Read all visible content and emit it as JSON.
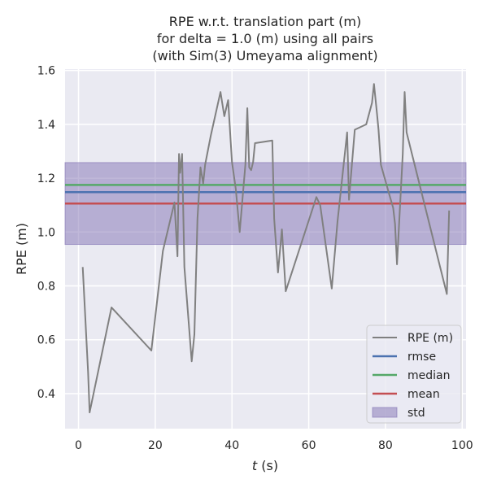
{
  "chart_data": {
    "type": "line",
    "title_lines": [
      "RPE w.r.t. translation part (m)",
      "for delta = 1.0 (m) using all pairs",
      "(with Sim(3) Umeyama alignment)"
    ],
    "xlabel_italic": "t",
    "xlabel_rest": " (s)",
    "ylabel": "RPE (m)",
    "xlim": [
      -3.5,
      101
    ],
    "ylim": [
      0.27,
      1.605
    ],
    "xticks": [
      0,
      20,
      40,
      60,
      80,
      100
    ],
    "xtick_labels": [
      "0",
      "20",
      "40",
      "60",
      "80",
      "100"
    ],
    "yticks": [
      0.4,
      0.6,
      0.8,
      1.0,
      1.2,
      1.4,
      1.6
    ],
    "ytick_labels": [
      "0.4",
      "0.6",
      "0.8",
      "1.0",
      "1.2",
      "1.4",
      "1.6"
    ],
    "grid": true,
    "legend_position": "lower-right",
    "series": [
      {
        "name": "RPE (m)",
        "color": "#808080",
        "x": [
          1.1,
          2.5,
          2.9,
          8.6,
          19.0,
          22.0,
          25.0,
          25.8,
          26.2,
          26.5,
          27.0,
          27.6,
          29.5,
          30.2,
          31.0,
          31.8,
          32.5,
          33.0,
          34.5,
          37.0,
          38.0,
          39.0,
          40.0,
          41.0,
          42.0,
          43.5,
          44.0,
          44.5,
          45.0,
          45.5,
          46.0,
          50.5,
          51.0,
          52.0,
          53.0,
          54.0,
          62.0,
          63.0,
          66.0,
          67.5,
          70.0,
          70.5,
          72.0,
          75.0,
          76.5,
          77.0,
          77.8,
          78.2,
          78.8,
          81.0,
          82.0,
          82.5,
          83.0,
          84.5,
          85.0,
          85.5,
          96.0,
          96.6
        ],
        "values": [
          0.87,
          0.48,
          0.33,
          0.72,
          0.56,
          0.93,
          1.11,
          0.91,
          1.29,
          1.22,
          1.29,
          0.87,
          0.52,
          0.62,
          1.05,
          1.24,
          1.18,
          1.25,
          1.36,
          1.52,
          1.43,
          1.49,
          1.26,
          1.16,
          1.0,
          1.25,
          1.46,
          1.24,
          1.23,
          1.26,
          1.33,
          1.34,
          1.05,
          0.85,
          1.01,
          0.78,
          1.13,
          1.1,
          0.79,
          1.04,
          1.37,
          1.12,
          1.38,
          1.4,
          1.48,
          1.55,
          1.44,
          1.38,
          1.25,
          1.14,
          1.09,
          1.03,
          0.88,
          1.29,
          1.52,
          1.37,
          0.77,
          1.08
        ]
      },
      {
        "name": "rmse",
        "color": "#4c72b0",
        "value": 1.148
      },
      {
        "name": "median",
        "color": "#55a868",
        "value": 1.175
      },
      {
        "name": "mean",
        "color": "#c44e52",
        "value": 1.106
      }
    ],
    "std_band": {
      "name": "std",
      "color": "#8172b3",
      "lower": 0.954,
      "upper": 1.258
    },
    "background_color": "#eaeaf2"
  }
}
